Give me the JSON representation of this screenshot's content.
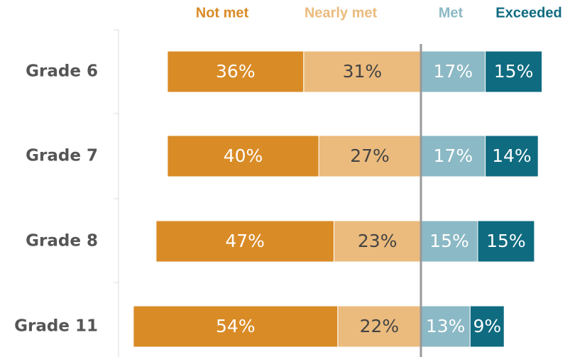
{
  "chart_data": {
    "type": "bar",
    "orientation": "horizontal",
    "stacked": true,
    "categories": [
      "Grade 6",
      "Grade 7",
      "Grade 8",
      "Grade 11"
    ],
    "series": [
      {
        "name": "Not met",
        "color": "#d98b26",
        "values": [
          36,
          40,
          47,
          54
        ],
        "value_labels": [
          "36%",
          "40%",
          "47%",
          "54%"
        ]
      },
      {
        "name": "Nearly met",
        "color": "#ebbb7d",
        "values": [
          31,
          27,
          23,
          22
        ],
        "value_labels": [
          "31%",
          "27%",
          "23%",
          "22%"
        ]
      },
      {
        "name": "Met",
        "color": "#8bb9c5",
        "values": [
          17,
          17,
          15,
          13
        ],
        "value_labels": [
          "17%",
          "17%",
          "15%",
          "13%"
        ]
      },
      {
        "name": "Exceeded",
        "color": "#0f6b80",
        "values": [
          15,
          14,
          15,
          9
        ],
        "value_labels": [
          "15%",
          "14%",
          "15%",
          "9%"
        ]
      }
    ]
  }
}
